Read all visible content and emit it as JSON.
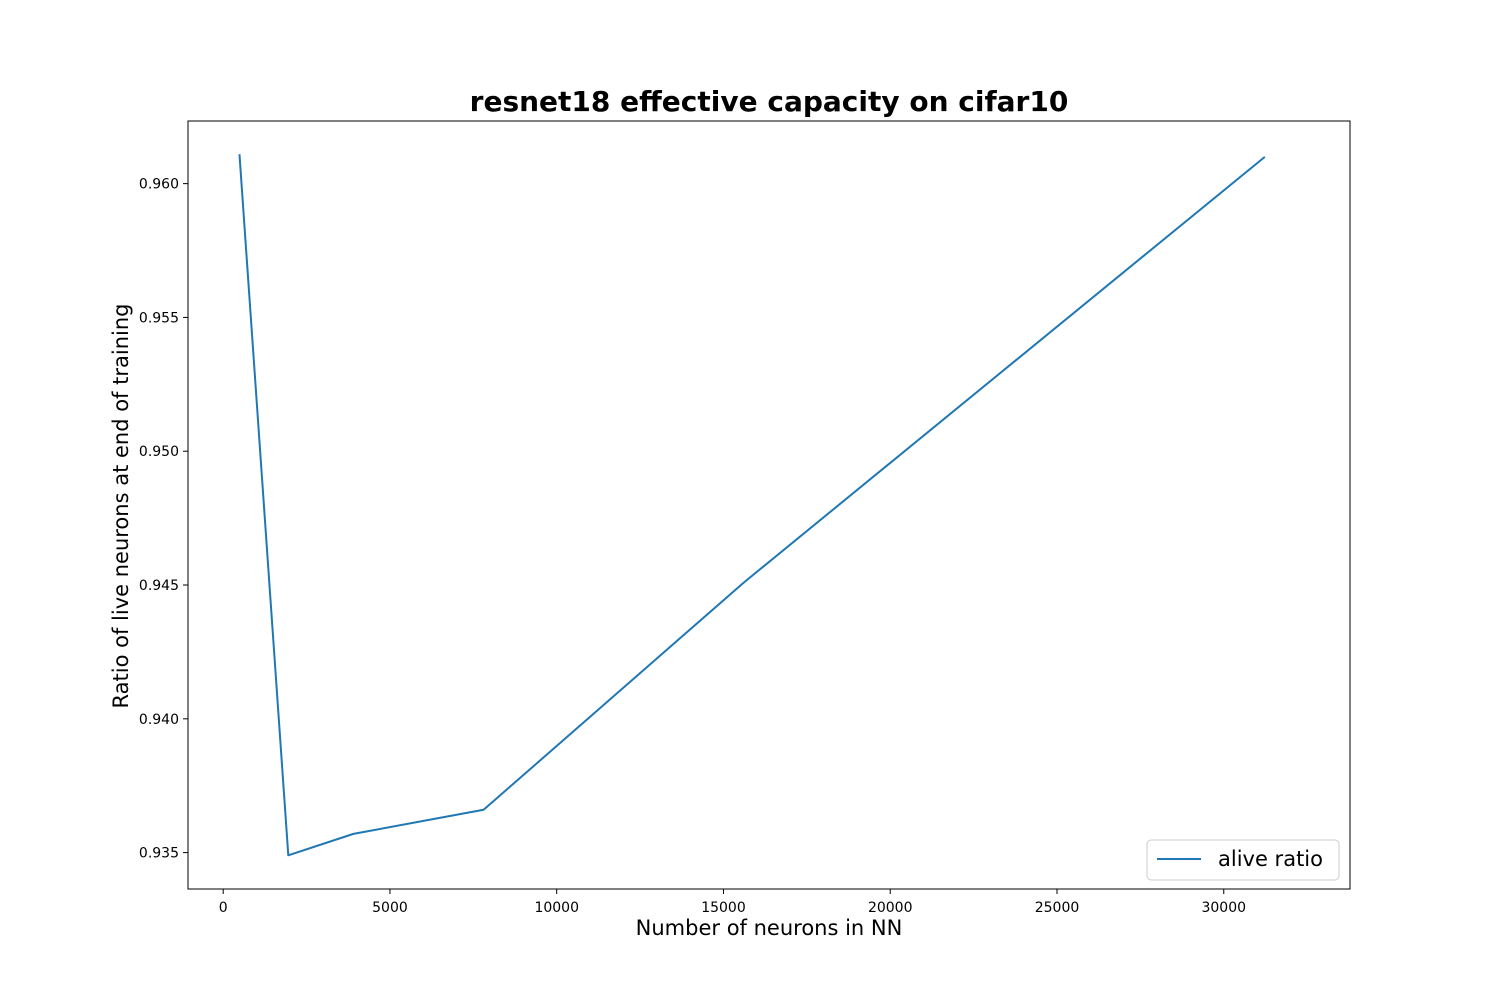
{
  "chart_data": {
    "type": "line",
    "title": "resnet18 effective capacity on cifar10",
    "xlabel": "Number of neurons in NN",
    "ylabel": "Ratio of live neurons at end of training",
    "xlim": [
      -1055,
      33785
    ],
    "ylim": [
      0.93364,
      0.96234
    ],
    "xticks": [
      0,
      5000,
      10000,
      15000,
      20000,
      25000,
      30000
    ],
    "xtick_labels": [
      "0",
      "5000",
      "10000",
      "15000",
      "20000",
      "25000",
      "30000"
    ],
    "yticks": [
      0.935,
      0.94,
      0.945,
      0.95,
      0.955,
      0.96
    ],
    "ytick_labels": [
      "0.935",
      "0.940",
      "0.945",
      "0.950",
      "0.955",
      "0.960"
    ],
    "grid": false,
    "legend_position": "lower-right",
    "series": [
      {
        "name": "alive ratio",
        "color": "#1f77b4",
        "x": [
          488,
          1952,
          3904,
          7808,
          15616,
          31232
        ],
        "y": [
          0.9611,
          0.9349,
          0.9357,
          0.9366,
          0.9451,
          0.961
        ]
      }
    ]
  }
}
